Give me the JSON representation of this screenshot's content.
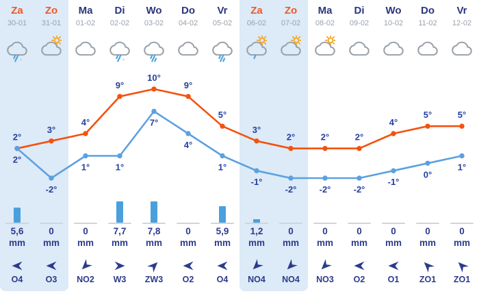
{
  "colors": {
    "weekend_bg": "#ddeaf7",
    "max_line": "#f4520e",
    "min_line": "#5ba1e0",
    "bar_blue": "#4aa0dc",
    "navy_text": "#2c3b8c",
    "temp_label": "#2440a0",
    "weekend_day": "#f25722",
    "weekday_day": "#2b357e",
    "date_gray": "#99a1ab",
    "cloud_stroke": "#9aa2aa",
    "sun_orange": "#f6a51f",
    "rain_blue": "#4aa0dc",
    "baseline_gray": "#cfd5da",
    "arrow_navy": "#2b3c8c"
  },
  "units": {
    "mm": "mm"
  },
  "days": [
    {
      "name": "Za",
      "date": "30-01",
      "weekend": true,
      "icon": "rain-light",
      "max": 2,
      "max_label": "2°",
      "min": 2,
      "min_label": "2°",
      "precip": {
        "display": "5,6",
        "value": 5.6
      },
      "wind": {
        "label": "O4",
        "direction": "O"
      }
    },
    {
      "name": "Zo",
      "date": "31-01",
      "weekend": true,
      "icon": "sun-cloud",
      "max": 3,
      "max_label": "3°",
      "min": -2,
      "min_label": "-2°",
      "precip": {
        "display": "0",
        "value": 0
      },
      "wind": {
        "label": "O3",
        "direction": "O"
      }
    },
    {
      "name": "Ma",
      "date": "01-02",
      "weekend": false,
      "icon": "cloud",
      "max": 4,
      "max_label": "4°",
      "min": 1,
      "min_label": "1°",
      "precip": {
        "display": "0",
        "value": 0
      },
      "wind": {
        "label": "NO2",
        "direction": "NO"
      }
    },
    {
      "name": "Di",
      "date": "02-02",
      "weekend": false,
      "icon": "rain-light",
      "max": 9,
      "max_label": "9°",
      "min": 1,
      "min_label": "1°",
      "precip": {
        "display": "7,7",
        "value": 7.7
      },
      "wind": {
        "label": "W3",
        "direction": "W"
      }
    },
    {
      "name": "Wo",
      "date": "03-02",
      "weekend": false,
      "icon": "rain",
      "max": 10,
      "max_label": "10°",
      "min": 7,
      "min_label": "7°",
      "precip": {
        "display": "7,8",
        "value": 7.8
      },
      "wind": {
        "label": "ZW3",
        "direction": "ZW"
      }
    },
    {
      "name": "Do",
      "date": "04-02",
      "weekend": false,
      "icon": "cloud",
      "max": 9,
      "max_label": "9°",
      "min": 4,
      "min_label": "4°",
      "precip": {
        "display": "0",
        "value": 0
      },
      "wind": {
        "label": "O2",
        "direction": "O"
      }
    },
    {
      "name": "Vr",
      "date": "05-02",
      "weekend": false,
      "icon": "rain",
      "max": 5,
      "max_label": "5°",
      "min": 1,
      "min_label": "1°",
      "precip": {
        "display": "5,9",
        "value": 5.9
      },
      "wind": {
        "label": "O4",
        "direction": "O"
      }
    },
    {
      "name": "Za",
      "date": "06-02",
      "weekend": true,
      "icon": "sun-cloud-drizzle",
      "max": 3,
      "max_label": "3°",
      "min": -1,
      "min_label": "-1°",
      "precip": {
        "display": "1,2",
        "value": 1.2
      },
      "wind": {
        "label": "NO4",
        "direction": "NO"
      }
    },
    {
      "name": "Zo",
      "date": "07-02",
      "weekend": true,
      "icon": "sun-cloud",
      "max": 2,
      "max_label": "2°",
      "min": -2,
      "min_label": "-2°",
      "precip": {
        "display": "0",
        "value": 0
      },
      "wind": {
        "label": "NO4",
        "direction": "NO"
      }
    },
    {
      "name": "Ma",
      "date": "08-02",
      "weekend": false,
      "icon": "sun-cloud",
      "max": 2,
      "max_label": "2°",
      "min": -2,
      "min_label": "-2°",
      "precip": {
        "display": "0",
        "value": 0
      },
      "wind": {
        "label": "NO3",
        "direction": "NO"
      }
    },
    {
      "name": "Di",
      "date": "09-02",
      "weekend": false,
      "icon": "cloud",
      "max": 2,
      "max_label": "2°",
      "min": -2,
      "min_label": "-2°",
      "precip": {
        "display": "0",
        "value": 0
      },
      "wind": {
        "label": "O2",
        "direction": "O"
      }
    },
    {
      "name": "Wo",
      "date": "10-02",
      "weekend": false,
      "icon": "cloud",
      "max": 4,
      "max_label": "4°",
      "min": -1,
      "min_label": "-1°",
      "precip": {
        "display": "0",
        "value": 0
      },
      "wind": {
        "label": "O1",
        "direction": "O"
      }
    },
    {
      "name": "Do",
      "date": "11-02",
      "weekend": false,
      "icon": "cloud",
      "max": 5,
      "max_label": "5°",
      "min": 0,
      "min_label": "0°",
      "precip": {
        "display": "0",
        "value": 0
      },
      "wind": {
        "label": "ZO1",
        "direction": "ZO"
      }
    },
    {
      "name": "Vr",
      "date": "12-02",
      "weekend": false,
      "icon": "cloud",
      "max": 5,
      "max_label": "5°",
      "min": 1,
      "min_label": "1°",
      "precip": {
        "display": "0",
        "value": 0
      },
      "wind": {
        "label": "ZO1",
        "direction": "ZO"
      }
    }
  ],
  "chart_data": {
    "type": "line",
    "title": "14-day weather forecast",
    "categories": [
      "30-01",
      "31-01",
      "01-02",
      "02-02",
      "03-02",
      "04-02",
      "05-02",
      "06-02",
      "07-02",
      "08-02",
      "09-02",
      "10-02",
      "11-02",
      "12-02"
    ],
    "category_days": [
      "Za",
      "Zo",
      "Ma",
      "Di",
      "Wo",
      "Do",
      "Vr",
      "Za",
      "Zo",
      "Ma",
      "Di",
      "Wo",
      "Do",
      "Vr"
    ],
    "series": [
      {
        "name": "max_temperature_c",
        "type": "line",
        "color": "#f4520e",
        "values": [
          2,
          3,
          4,
          9,
          10,
          9,
          5,
          3,
          2,
          2,
          2,
          4,
          5,
          5
        ]
      },
      {
        "name": "min_temperature_c",
        "type": "line",
        "color": "#5ba1e0",
        "values": [
          2,
          -2,
          1,
          1,
          7,
          4,
          1,
          -1,
          -2,
          -2,
          -2,
          -1,
          0,
          1
        ]
      },
      {
        "name": "precipitation_mm",
        "type": "bar",
        "color": "#4aa0dc",
        "values": [
          5.6,
          0,
          0,
          7.7,
          7.8,
          0,
          5.9,
          1.2,
          0,
          0,
          0,
          0,
          0,
          0
        ]
      }
    ],
    "wind_labels": [
      "O4",
      "O3",
      "NO2",
      "W3",
      "ZW3",
      "O2",
      "O4",
      "NO4",
      "NO4",
      "NO3",
      "O2",
      "O1",
      "ZO1",
      "ZO1"
    ],
    "ylim": [
      -3,
      11
    ],
    "grid": false,
    "legend": "none",
    "data_labels": true
  }
}
